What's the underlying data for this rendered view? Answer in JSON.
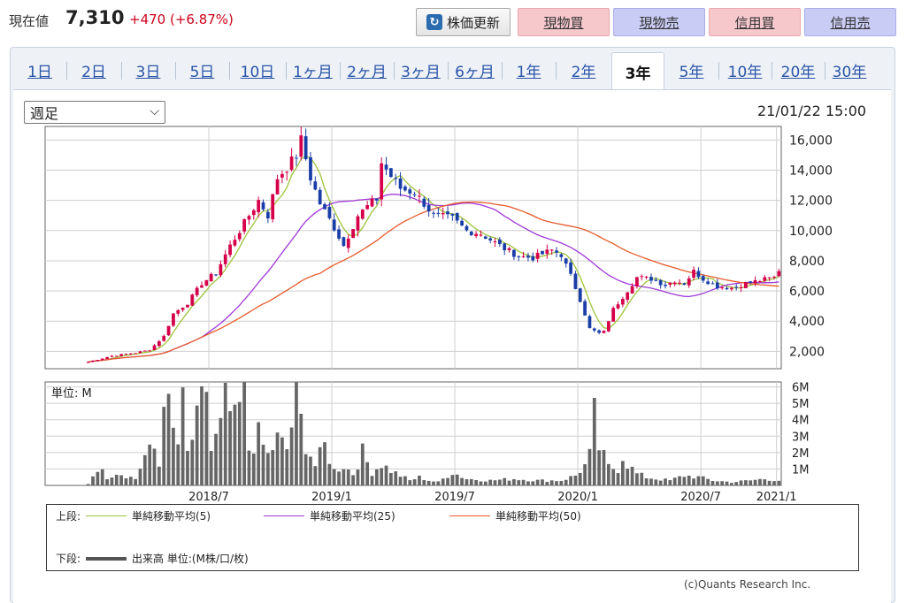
{
  "header": {
    "price_label": "現在値",
    "price_value": "7,310",
    "price_change": "+470 (+6.87%)",
    "refresh_label": "株価更新",
    "actions": [
      "現物買",
      "現物売",
      "信用買",
      "信用売"
    ]
  },
  "tabs": [
    "1日",
    "2日",
    "3日",
    "5日",
    "10日",
    "1ヶ月",
    "2ヶ月",
    "3ヶ月",
    "6ヶ月",
    "1年",
    "2年",
    "3年",
    "5年",
    "10年",
    "20年",
    "30年"
  ],
  "active_tab": "3年",
  "selector": {
    "value": "週足"
  },
  "timestamp": "21/01/22 15:00",
  "legend": {
    "upper_label": "上段:",
    "lower_label": "下段:",
    "ma5": "単純移動平均(5)",
    "ma25": "単純移動平均(25)",
    "ma50": "単純移動平均(50)",
    "volume": "出来高 単位:(M株/口/枚)"
  },
  "copyright": "(c)Quants Research Inc.",
  "colors": {
    "up": "#d6004a",
    "down": "#1a3ea8",
    "ma5": "#9ec43a",
    "ma25": "#a038d8",
    "ma50": "#e85a2a",
    "volume": "#666666"
  },
  "chart_data": {
    "type": "candlestick",
    "price_axis": {
      "ticks": [
        2000,
        4000,
        6000,
        8000,
        10000,
        12000,
        14000,
        16000
      ],
      "tick_labels": [
        "2,000",
        "4,000",
        "6,000",
        "8,000",
        "10,000",
        "12,000",
        "14,000",
        "16,000"
      ],
      "ylim": [
        850,
        16900
      ]
    },
    "volume_axis": {
      "unit_label": "単位: M",
      "ticks": [
        1,
        2,
        3,
        4,
        5,
        6
      ],
      "tick_labels": [
        "1M",
        "2M",
        "3M",
        "4M",
        "5M",
        "6M"
      ],
      "ylim": [
        0,
        6.3
      ]
    },
    "x_labels": [
      "2018/7",
      "2019/1",
      "2019/7",
      "2020/1",
      "2020/7",
      "2021/1"
    ],
    "close_keypoints": [
      [
        0,
        1300
      ],
      [
        5,
        1700
      ],
      [
        10,
        1900
      ],
      [
        13,
        2100
      ],
      [
        16,
        3000
      ],
      [
        18,
        4500
      ],
      [
        21,
        5200
      ],
      [
        24,
        6500
      ],
      [
        27,
        7200
      ],
      [
        30,
        9000
      ],
      [
        33,
        10500
      ],
      [
        36,
        12000
      ],
      [
        38,
        11000
      ],
      [
        40,
        13500
      ],
      [
        42,
        14200
      ],
      [
        44,
        15000
      ],
      [
        45,
        16000
      ],
      [
        47,
        13500
      ],
      [
        49,
        11800
      ],
      [
        52,
        10200
      ],
      [
        54,
        9000
      ],
      [
        57,
        11000
      ],
      [
        59,
        11600
      ],
      [
        61,
        12100
      ],
      [
        62,
        14500
      ],
      [
        64,
        13600
      ],
      [
        66,
        12800
      ],
      [
        69,
        12500
      ],
      [
        71,
        11800
      ],
      [
        73,
        11000
      ],
      [
        77,
        10800
      ],
      [
        80,
        10000
      ],
      [
        83,
        9800
      ],
      [
        86,
        9200
      ],
      [
        88,
        8800
      ],
      [
        91,
        8300
      ],
      [
        94,
        8200
      ],
      [
        98,
        8700
      ],
      [
        100,
        8400
      ],
      [
        102,
        7000
      ],
      [
        104,
        5400
      ],
      [
        106,
        3500
      ],
      [
        108,
        3200
      ],
      [
        109,
        3300
      ],
      [
        111,
        4800
      ],
      [
        113,
        5600
      ],
      [
        116,
        6900
      ],
      [
        119,
        6800
      ],
      [
        122,
        6400
      ],
      [
        124,
        6700
      ],
      [
        126,
        6500
      ],
      [
        128,
        7300
      ],
      [
        130,
        6800
      ],
      [
        133,
        6300
      ],
      [
        136,
        6200
      ],
      [
        139,
        6500
      ],
      [
        142,
        6700
      ],
      [
        145,
        6900
      ],
      [
        146,
        7310
      ]
    ],
    "volume_keypoints": [
      [
        0,
        0.1
      ],
      [
        2,
        1.1
      ],
      [
        4,
        0.5
      ],
      [
        6,
        0.8
      ],
      [
        8,
        0.6
      ],
      [
        10,
        0.4
      ],
      [
        12,
        1.8
      ],
      [
        14,
        2.2
      ],
      [
        15,
        1.2
      ],
      [
        16,
        6.2
      ],
      [
        17,
        4.5
      ],
      [
        18,
        3.2
      ],
      [
        19,
        2.5
      ],
      [
        20,
        4.8
      ],
      [
        21,
        1.9
      ],
      [
        23,
        3.8
      ],
      [
        25,
        6.0
      ],
      [
        26,
        2.1
      ],
      [
        28,
        3.5
      ],
      [
        29,
        5.0
      ],
      [
        31,
        3.8
      ],
      [
        33,
        5.6
      ],
      [
        34,
        2.2
      ],
      [
        36,
        3.0
      ],
      [
        38,
        1.8
      ],
      [
        40,
        2.8
      ],
      [
        42,
        2.2
      ],
      [
        44,
        5.1
      ],
      [
        46,
        2.6
      ],
      [
        48,
        1.2
      ],
      [
        50,
        2.4
      ],
      [
        52,
        0.9
      ],
      [
        54,
        1.2
      ],
      [
        56,
        0.7
      ],
      [
        58,
        2.0
      ],
      [
        60,
        0.8
      ],
      [
        62,
        1.3
      ],
      [
        64,
        0.9
      ],
      [
        66,
        0.6
      ],
      [
        68,
        0.3
      ],
      [
        70,
        0.5
      ],
      [
        72,
        0.3
      ],
      [
        74,
        0.2
      ],
      [
        77,
        0.8
      ],
      [
        80,
        0.4
      ],
      [
        85,
        0.3
      ],
      [
        90,
        0.4
      ],
      [
        95,
        0.3
      ],
      [
        100,
        0.3
      ],
      [
        103,
        0.6
      ],
      [
        105,
        1.2
      ],
      [
        106,
        1.8
      ],
      [
        107,
        4.2
      ],
      [
        108,
        2.3
      ],
      [
        110,
        1.1
      ],
      [
        112,
        1.0
      ],
      [
        113,
        1.8
      ],
      [
        114,
        1.3
      ],
      [
        116,
        0.7
      ],
      [
        118,
        0.5
      ],
      [
        120,
        0.4
      ],
      [
        123,
        0.3
      ],
      [
        126,
        0.6
      ],
      [
        129,
        0.5
      ],
      [
        132,
        0.3
      ],
      [
        136,
        0.2
      ],
      [
        140,
        0.3
      ],
      [
        143,
        0.4
      ],
      [
        146,
        0.3
      ]
    ]
  }
}
